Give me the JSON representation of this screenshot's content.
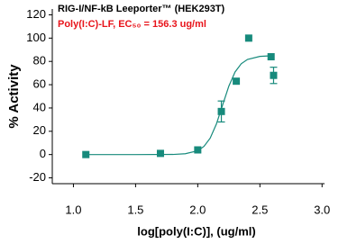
{
  "chart_data": {
    "type": "scatter",
    "title": "RIG-I/NF-kB Leeporter™ (HEK293T)",
    "subtitle": "Poly(I:C)-LF, EC₅₀ = 156.3 ug/ml",
    "x_label": "log[poly(I:C)], (ug/ml)",
    "y_label": "% Activity",
    "xlim": [
      0.83,
      3.02
    ],
    "ylim": [
      -25,
      125
    ],
    "xticks": [
      {
        "value": 1,
        "label": "1.0"
      },
      {
        "value": 1.5,
        "label": "1.5"
      },
      {
        "value": 2,
        "label": "2.0"
      },
      {
        "value": 2.5,
        "label": "2.5"
      },
      {
        "value": 3,
        "label": "3.0"
      }
    ],
    "yticks": [
      -20,
      0,
      20,
      40,
      60,
      80,
      100,
      120
    ],
    "series": [
      {
        "type": "scatter",
        "color": "#178a7c",
        "x": [
          1.1,
          1.7,
          2.0,
          2.19,
          2.31,
          2.41,
          2.59,
          2.61
        ],
        "values": [
          0,
          1,
          4,
          37,
          63,
          100,
          84,
          68
        ],
        "errors": [
          null,
          null,
          null,
          9,
          null,
          null,
          null,
          7
        ]
      },
      {
        "type": "line",
        "color": "#178a7c",
        "x": [
          1.1,
          1.5,
          1.8,
          1.9,
          2.0,
          2.05,
          2.1,
          2.15,
          2.2,
          2.25,
          2.3,
          2.35,
          2.4,
          2.5,
          2.6
        ],
        "values": [
          0,
          0,
          0.1,
          0.7,
          3.3,
          7,
          14.1,
          26.2,
          42.5,
          58.7,
          70.9,
          78,
          81.7,
          84.3,
          84.9
        ]
      }
    ]
  }
}
